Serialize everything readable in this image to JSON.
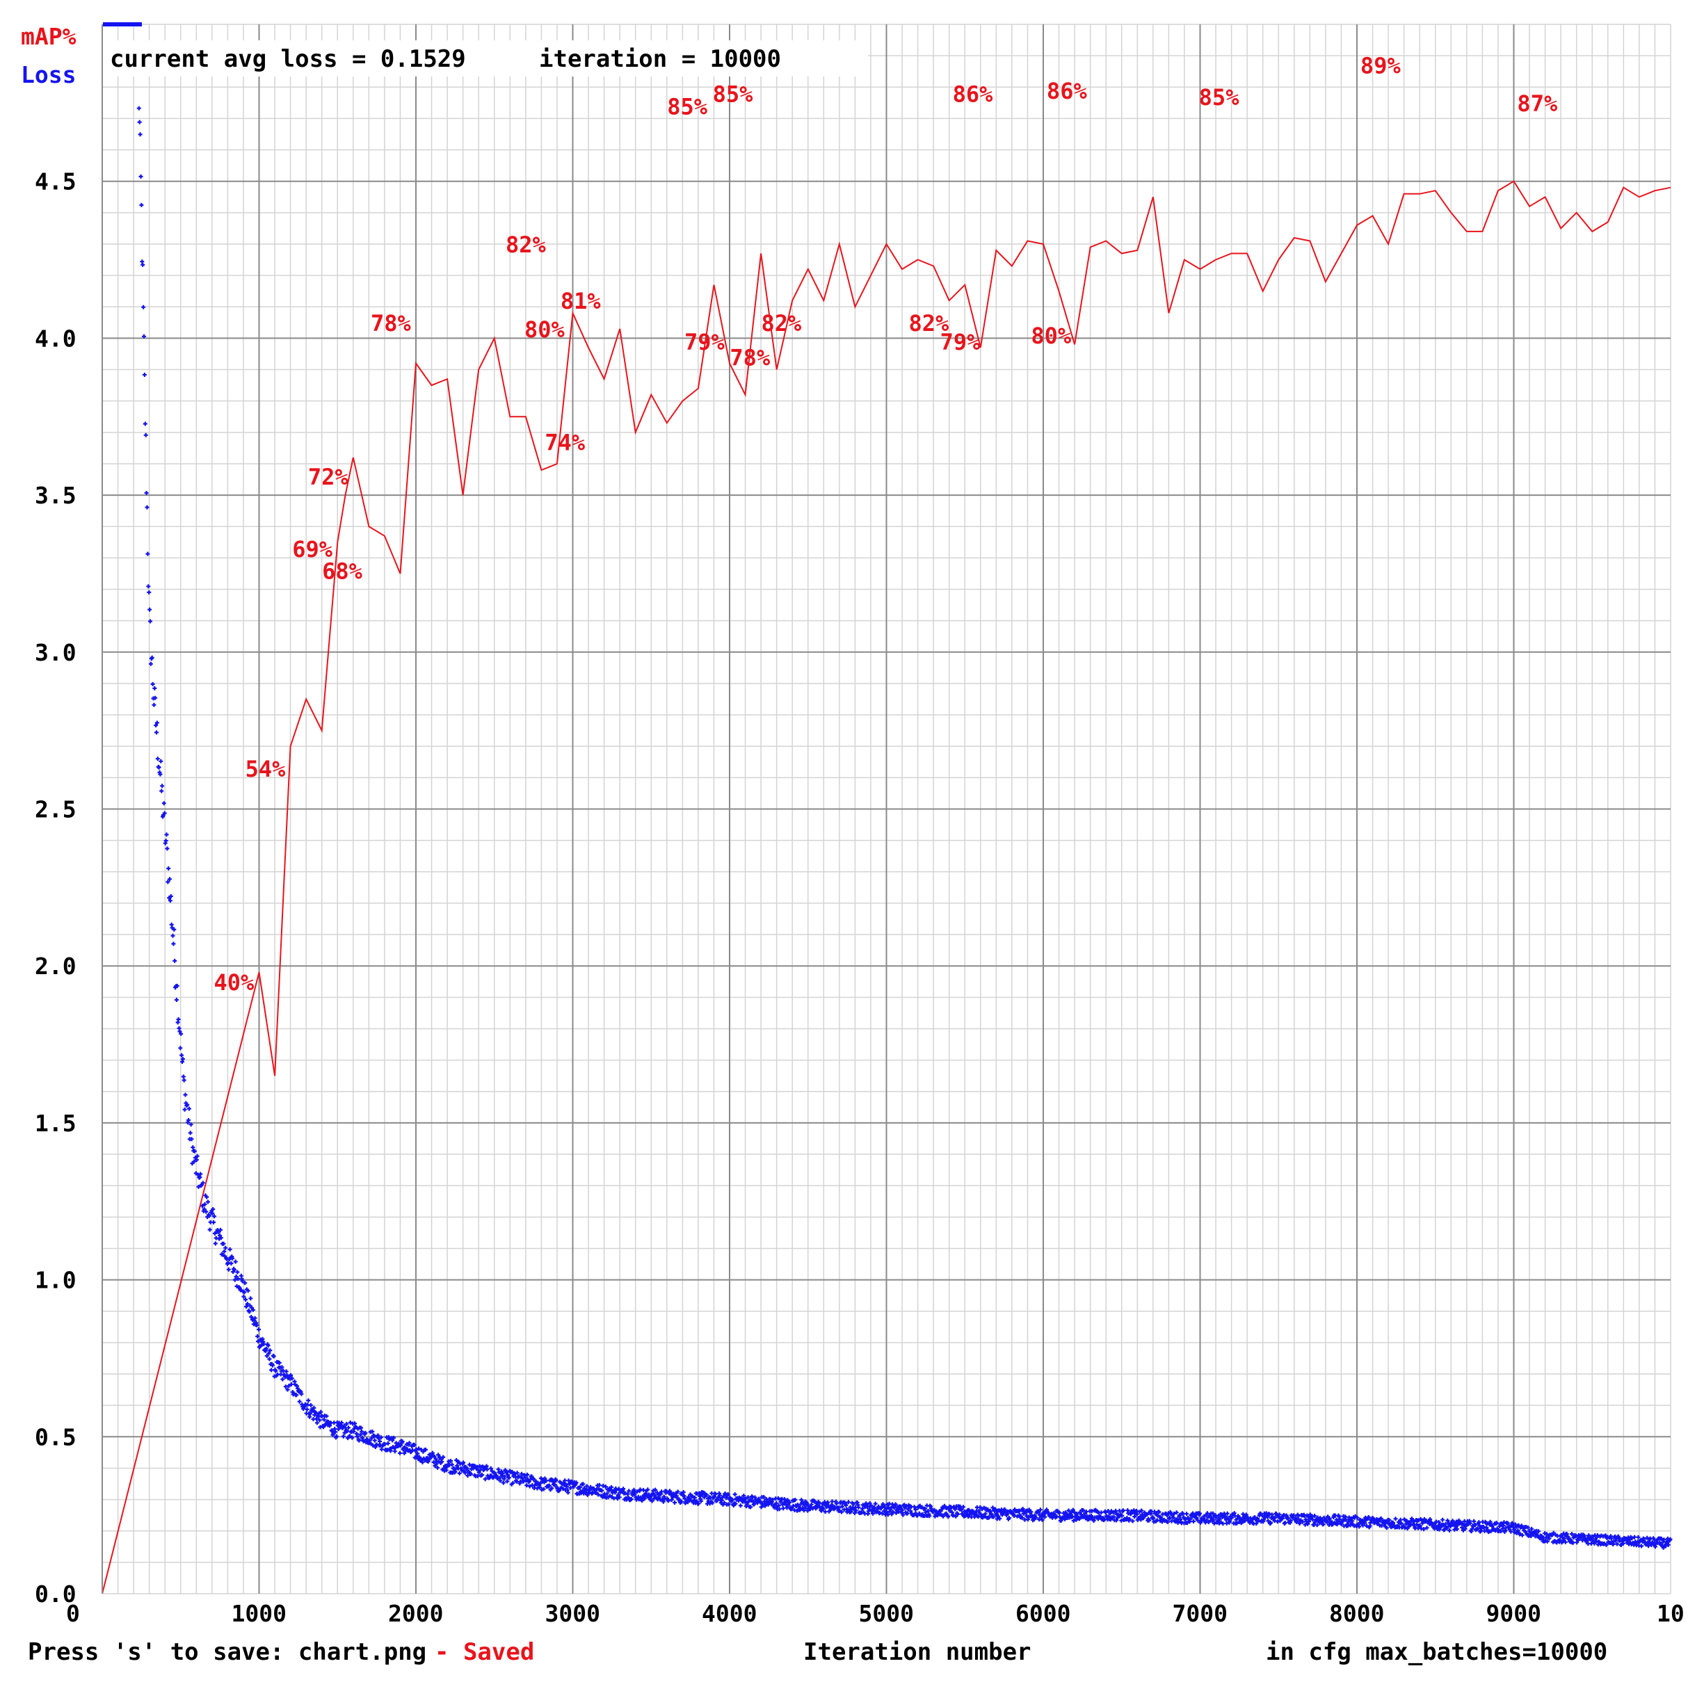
{
  "chart_data": {
    "type": "line",
    "legend": {
      "map_label": "mAP%",
      "loss_label": "Loss",
      "map_color": "#e8141c",
      "loss_color": "#1414f0"
    },
    "status": {
      "current_avg_loss_text": "current avg loss = 0.1529",
      "iteration_text": "iteration = 10000"
    },
    "footer": {
      "press_save_text": "Press 's' to save: chart.png",
      "saved_text": "- Saved",
      "xlabel": "Iteration number",
      "max_batches_text": "in cfg max_batches=10000"
    },
    "x_ticks": [
      "0",
      "1000",
      "2000",
      "3000",
      "4000",
      "5000",
      "6000",
      "7000",
      "8000",
      "9000",
      "10"
    ],
    "y_ticks": [
      "0.0",
      "0.5",
      "1.0",
      "1.5",
      "2.0",
      "2.5",
      "3.0",
      "3.5",
      "4.0",
      "4.5"
    ],
    "xlim": [
      0,
      10000
    ],
    "ylim": [
      0,
      5
    ],
    "grid": true,
    "legend_placement": "top-left",
    "map_series": {
      "name": "mAP%",
      "color": "#e8141c",
      "points": [
        [
          0,
          0.0
        ],
        [
          1000,
          1.98
        ],
        [
          1100,
          1.65
        ],
        [
          1200,
          2.7
        ],
        [
          1300,
          2.85
        ],
        [
          1400,
          2.75
        ],
        [
          1500,
          3.35
        ],
        [
          1550,
          3.5
        ],
        [
          1600,
          3.62
        ],
        [
          1700,
          3.4
        ],
        [
          1800,
          3.37
        ],
        [
          1900,
          3.25
        ],
        [
          2000,
          3.92
        ],
        [
          2100,
          3.85
        ],
        [
          2200,
          3.87
        ],
        [
          2300,
          3.5
        ],
        [
          2400,
          3.9
        ],
        [
          2500,
          4.0
        ],
        [
          2600,
          3.75
        ],
        [
          2700,
          3.75
        ],
        [
          2800,
          3.58
        ],
        [
          2900,
          3.6
        ],
        [
          3000,
          4.08
        ],
        [
          3100,
          3.97
        ],
        [
          3200,
          3.87
        ],
        [
          3300,
          4.03
        ],
        [
          3400,
          3.7
        ],
        [
          3500,
          3.82
        ],
        [
          3600,
          3.73
        ],
        [
          3700,
          3.8
        ],
        [
          3800,
          3.84
        ],
        [
          3900,
          4.17
        ],
        [
          4000,
          3.92
        ],
        [
          4100,
          3.82
        ],
        [
          4200,
          4.27
        ],
        [
          4300,
          3.9
        ],
        [
          4400,
          4.12
        ],
        [
          4500,
          4.22
        ],
        [
          4600,
          4.12
        ],
        [
          4700,
          4.3
        ],
        [
          4800,
          4.1
        ],
        [
          4900,
          4.2
        ],
        [
          5000,
          4.3
        ],
        [
          5100,
          4.22
        ],
        [
          5200,
          4.25
        ],
        [
          5300,
          4.23
        ],
        [
          5400,
          4.12
        ],
        [
          5500,
          4.17
        ],
        [
          5600,
          3.97
        ],
        [
          5700,
          4.28
        ],
        [
          5800,
          4.23
        ],
        [
          5900,
          4.31
        ],
        [
          6000,
          4.3
        ],
        [
          6100,
          4.15
        ],
        [
          6200,
          3.98
        ],
        [
          6300,
          4.29
        ],
        [
          6400,
          4.31
        ],
        [
          6500,
          4.27
        ],
        [
          6600,
          4.28
        ],
        [
          6700,
          4.45
        ],
        [
          6800,
          4.08
        ],
        [
          6900,
          4.25
        ],
        [
          7000,
          4.22
        ],
        [
          7100,
          4.25
        ],
        [
          7200,
          4.27
        ],
        [
          7300,
          4.27
        ],
        [
          7400,
          4.15
        ],
        [
          7500,
          4.25
        ],
        [
          7600,
          4.32
        ],
        [
          7700,
          4.31
        ],
        [
          7800,
          4.18
        ],
        [
          7900,
          4.27
        ],
        [
          8000,
          4.36
        ],
        [
          8100,
          4.39
        ],
        [
          8200,
          4.3
        ],
        [
          8300,
          4.46
        ],
        [
          8400,
          4.46
        ],
        [
          8500,
          4.47
        ],
        [
          8600,
          4.4
        ],
        [
          8700,
          4.34
        ],
        [
          8800,
          4.34
        ],
        [
          8900,
          4.47
        ],
        [
          9000,
          4.5
        ],
        [
          9100,
          4.42
        ],
        [
          9200,
          4.45
        ],
        [
          9300,
          4.35
        ],
        [
          9400,
          4.4
        ],
        [
          9500,
          4.34
        ],
        [
          9600,
          4.37
        ],
        [
          9700,
          4.48
        ],
        [
          9800,
          4.45
        ],
        [
          9900,
          4.47
        ],
        [
          10000,
          4.48
        ]
      ]
    },
    "map_annotations": [
      {
        "text": "40%",
        "x": 840,
        "y": 1.95
      },
      {
        "text": "54%",
        "x": 1040,
        "y": 2.63
      },
      {
        "text": "69%",
        "x": 1340,
        "y": 3.33
      },
      {
        "text": "68%",
        "x": 1530,
        "y": 3.26
      },
      {
        "text": "72%",
        "x": 1440,
        "y": 3.56
      },
      {
        "text": "78%",
        "x": 1840,
        "y": 4.05
      },
      {
        "text": "82%",
        "x": 2700,
        "y": 4.3
      },
      {
        "text": "80%",
        "x": 2820,
        "y": 4.03
      },
      {
        "text": "81%",
        "x": 3050,
        "y": 4.12
      },
      {
        "text": "74%",
        "x": 2950,
        "y": 3.67
      },
      {
        "text": "85%",
        "x": 3730,
        "y": 4.74
      },
      {
        "text": "85%",
        "x": 4020,
        "y": 4.78
      },
      {
        "text": "79%",
        "x": 3840,
        "y": 3.99
      },
      {
        "text": "78%",
        "x": 4130,
        "y": 3.94
      },
      {
        "text": "82%",
        "x": 4330,
        "y": 4.05
      },
      {
        "text": "82%",
        "x": 5270,
        "y": 4.05
      },
      {
        "text": "86%",
        "x": 5550,
        "y": 4.78
      },
      {
        "text": "79%",
        "x": 5470,
        "y": 3.99
      },
      {
        "text": "86%",
        "x": 6150,
        "y": 4.79
      },
      {
        "text": "80%",
        "x": 6050,
        "y": 4.01
      },
      {
        "text": "85%",
        "x": 7120,
        "y": 4.77
      },
      {
        "text": "89%",
        "x": 8150,
        "y": 4.87
      },
      {
        "text": "87%",
        "x": 9150,
        "y": 4.75
      }
    ],
    "loss_series": {
      "name": "Loss",
      "color": "#1414f0",
      "anchors": [
        [
          230,
          4.85
        ],
        [
          250,
          4.4
        ],
        [
          270,
          3.85
        ],
        [
          290,
          3.35
        ],
        [
          300,
          3.1
        ],
        [
          330,
          2.85
        ],
        [
          380,
          2.55
        ],
        [
          430,
          2.25
        ],
        [
          480,
          1.9
        ],
        [
          520,
          1.62
        ],
        [
          580,
          1.4
        ],
        [
          650,
          1.25
        ],
        [
          730,
          1.15
        ],
        [
          800,
          1.07
        ],
        [
          880,
          1.0
        ],
        [
          950,
          0.9
        ],
        [
          1000,
          0.82
        ],
        [
          1100,
          0.72
        ],
        [
          1200,
          0.67
        ],
        [
          1300,
          0.6
        ],
        [
          1400,
          0.55
        ],
        [
          1500,
          0.52
        ],
        [
          1600,
          0.52
        ],
        [
          1700,
          0.5
        ],
        [
          1800,
          0.48
        ],
        [
          1900,
          0.47
        ],
        [
          2000,
          0.45
        ],
        [
          2200,
          0.41
        ],
        [
          2400,
          0.39
        ],
        [
          2600,
          0.37
        ],
        [
          2800,
          0.35
        ],
        [
          3000,
          0.34
        ],
        [
          3300,
          0.32
        ],
        [
          3600,
          0.31
        ],
        [
          4000,
          0.3
        ],
        [
          4500,
          0.28
        ],
        [
          5000,
          0.27
        ],
        [
          5500,
          0.26
        ],
        [
          6000,
          0.25
        ],
        [
          6500,
          0.25
        ],
        [
          7000,
          0.24
        ],
        [
          7500,
          0.24
        ],
        [
          8000,
          0.23
        ],
        [
          8500,
          0.22
        ],
        [
          9000,
          0.21
        ],
        [
          9200,
          0.18
        ],
        [
          9600,
          0.17
        ],
        [
          10000,
          0.16
        ]
      ]
    }
  }
}
